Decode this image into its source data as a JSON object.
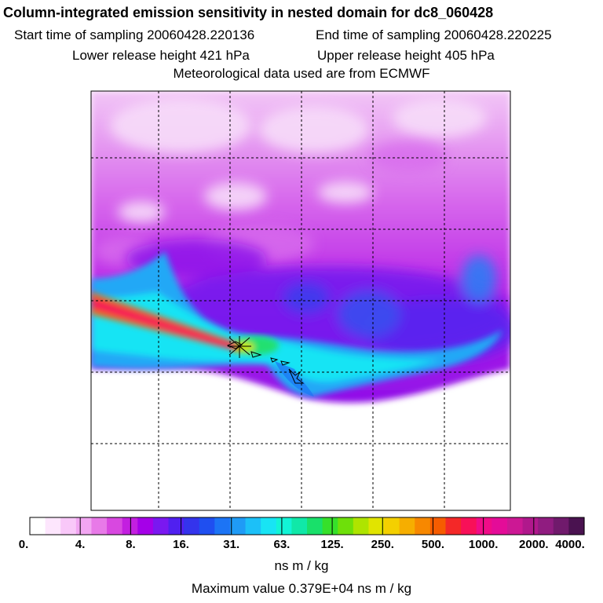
{
  "header": {
    "title": "Column-integrated emission sensitivity in nested domain for dc8_060428",
    "start_label": "Start time of sampling 20060428.220136",
    "end_label": "End time of sampling 20060428.220225",
    "lower_label": "Lower release height  421 hPa",
    "upper_label": "Upper release height  405 hPa",
    "met_label": "Meteorological data used are from ECMWF"
  },
  "colorbar": {
    "tick_labels": [
      "0.",
      "4.",
      "8.",
      "16.",
      "31.",
      "63.",
      "125.",
      "250.",
      "500.",
      "1000.",
      "2000.",
      "4000."
    ],
    "units": "ns m / kg",
    "colors": [
      "#ffffff",
      "#fde6fd",
      "#f9c8f9",
      "#f2a6f2",
      "#e87ae8",
      "#d848e0",
      "#c31fe0",
      "#a500e8",
      "#7a18f0",
      "#5020f0",
      "#3434ec",
      "#1f4ff0",
      "#1c74f5",
      "#1f9bf6",
      "#1cc0f8",
      "#18e4f4",
      "#12f4d6",
      "#10e8a8",
      "#19e06a",
      "#36e02a",
      "#6ee00a",
      "#aee400",
      "#e1e400",
      "#f4d000",
      "#f6ae00",
      "#f78800",
      "#f65c00",
      "#f42828",
      "#f81058",
      "#f00c88",
      "#e40c98",
      "#cc1894",
      "#b0188c",
      "#901c80",
      "#701a6c",
      "#4a1250"
    ]
  },
  "chart_data": {
    "type": "heatmap",
    "title": "Column-integrated emission sensitivity in nested domain for dc8_060428",
    "colorbar_label": "ns m / kg",
    "colorbar_levels": [
      0,
      4,
      8,
      16,
      31,
      63,
      125,
      250,
      500,
      1000,
      2000,
      4000
    ],
    "max_value_text": "Maximum value  0.379E+04 ns m / kg",
    "max_value": 3790,
    "grid": true,
    "release_marker": "cross symbol with dashed flight track"
  },
  "footer": {
    "max_label": "Maximum value  0.379E+04 ns m / kg"
  }
}
